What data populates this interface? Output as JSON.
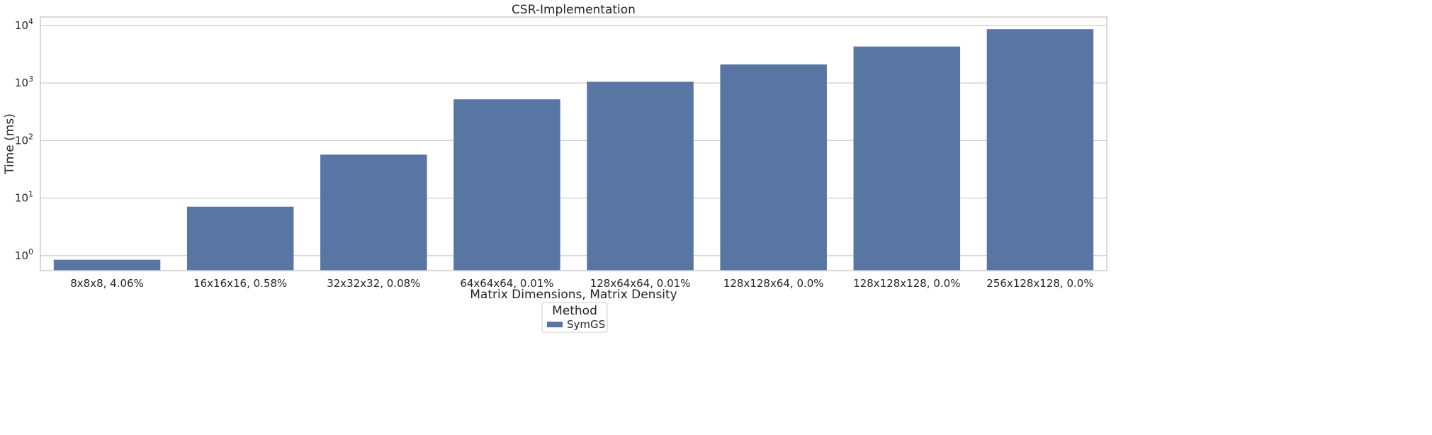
{
  "chart_data": {
    "type": "bar",
    "title": "CSR-Implementation",
    "xlabel": "Matrix Dimensions, Matrix Density",
    "ylabel": "Time (ms)",
    "yscale": "log",
    "ylim": [
      0.55,
      14000
    ],
    "y_ticks": [
      {
        "value": 1,
        "base": "10",
        "exp": "0"
      },
      {
        "value": 10,
        "base": "10",
        "exp": "1"
      },
      {
        "value": 100,
        "base": "10",
        "exp": "2"
      },
      {
        "value": 1000,
        "base": "10",
        "exp": "3"
      },
      {
        "value": 10000,
        "base": "10",
        "exp": "4"
      }
    ],
    "categories": [
      "8x8x8, 4.06%",
      "16x16x16, 0.58%",
      "32x32x32, 0.08%",
      "64x64x64, 0.01%",
      "128x64x64, 0.01%",
      "128x128x64, 0.0%",
      "128x128x128, 0.0%",
      "256x128x128, 0.0%"
    ],
    "series": [
      {
        "name": "SymGS",
        "color": "#5975a4",
        "values": [
          0.85,
          7.1,
          57,
          520,
          1050,
          2100,
          4300,
          8600
        ]
      }
    ],
    "legend": {
      "title": "Method",
      "placement": "bottom-center"
    },
    "grid": true,
    "colors": {
      "grid": "#cccccc",
      "axis_frame": "#cccccc",
      "text": "#262626"
    }
  }
}
